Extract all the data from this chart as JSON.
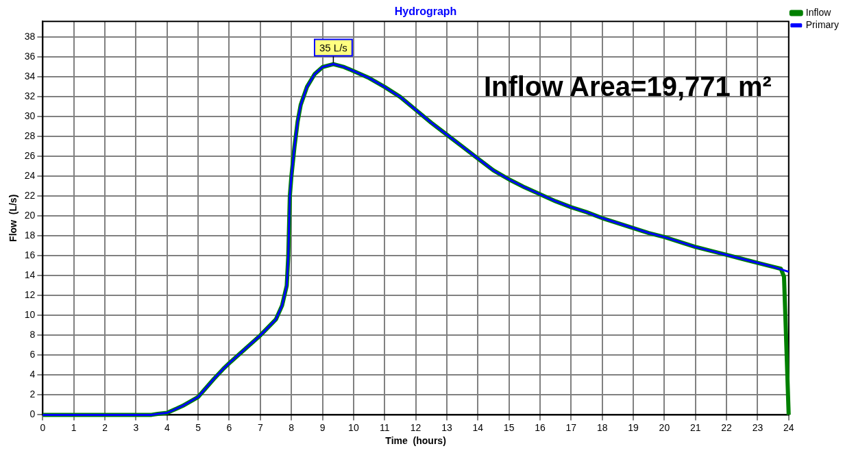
{
  "chart_data": {
    "type": "line",
    "title": "Hydrograph",
    "xlabel": "Time  (hours)",
    "ylabel": "Flow  (L/s)",
    "xlim": [
      0,
      24
    ],
    "xticks": [
      0,
      1,
      2,
      3,
      4,
      5,
      6,
      7,
      8,
      9,
      10,
      11,
      12,
      13,
      14,
      15,
      16,
      17,
      18,
      19,
      20,
      21,
      22,
      23,
      24
    ],
    "ylim": [
      0,
      39.6
    ],
    "yticks": [
      0,
      2,
      4,
      6,
      8,
      10,
      12,
      14,
      16,
      18,
      20,
      22,
      24,
      26,
      28,
      30,
      32,
      34,
      36,
      38
    ],
    "grid": true,
    "legend": "top right",
    "marker": "none",
    "line_style": "solid",
    "annotations": [
      {
        "text": "35 L/s",
        "x": 9.35,
        "y": 35.3
      },
      "Inflow Area=19,771 m²"
    ],
    "series": [
      {
        "name": "Inflow",
        "color": "#008000",
        "x": [
          0,
          3.5,
          3.7,
          4.0,
          4.5,
          5.0,
          5.5,
          5.8,
          6.0,
          6.5,
          7.0,
          7.5,
          7.7,
          7.85,
          7.9,
          7.95,
          8.0,
          8.1,
          8.2,
          8.3,
          8.5,
          8.75,
          9.0,
          9.35,
          9.7,
          10.0,
          10.5,
          11.0,
          11.5,
          12.0,
          12.5,
          13.0,
          13.5,
          14.0,
          14.5,
          15.0,
          15.5,
          16.0,
          16.5,
          17.0,
          17.5,
          18.0,
          18.5,
          19.0,
          19.5,
          20.0,
          20.5,
          21.0,
          21.5,
          22.0,
          22.5,
          23.0,
          23.5,
          23.75,
          23.85,
          24.0
        ],
        "values": [
          0,
          0,
          0.1,
          0.2,
          0.9,
          1.8,
          3.6,
          4.6,
          5.2,
          6.6,
          8.0,
          9.6,
          11.0,
          13.0,
          16.0,
          22.0,
          24.0,
          27.0,
          29.5,
          31.2,
          33.0,
          34.3,
          35.0,
          35.3,
          35.0,
          34.6,
          33.9,
          33.0,
          32.0,
          30.7,
          29.4,
          28.2,
          27.0,
          25.8,
          24.6,
          23.7,
          22.9,
          22.2,
          21.5,
          20.9,
          20.4,
          19.8,
          19.3,
          18.8,
          18.3,
          17.9,
          17.4,
          16.9,
          16.5,
          16.1,
          15.7,
          15.3,
          14.9,
          14.7,
          13.9,
          0
        ]
      },
      {
        "name": "Primary",
        "color": "#0000ff",
        "x": [
          0,
          3.5,
          3.7,
          4.0,
          4.5,
          5.0,
          5.5,
          5.8,
          6.0,
          6.5,
          7.0,
          7.5,
          7.7,
          7.85,
          7.9,
          7.95,
          8.0,
          8.1,
          8.2,
          8.3,
          8.5,
          8.75,
          9.0,
          9.35,
          9.7,
          10.0,
          10.5,
          11.0,
          11.5,
          12.0,
          12.5,
          13.0,
          13.5,
          14.0,
          14.5,
          15.0,
          15.5,
          16.0,
          16.5,
          17.0,
          17.5,
          18.0,
          18.5,
          19.0,
          19.5,
          20.0,
          20.5,
          21.0,
          21.5,
          22.0,
          22.5,
          23.0,
          23.5,
          24.0
        ],
        "values": [
          0,
          0,
          0.1,
          0.2,
          0.9,
          1.8,
          3.6,
          4.6,
          5.2,
          6.6,
          8.0,
          9.6,
          11.0,
          13.0,
          16.0,
          22.0,
          24.0,
          27.0,
          29.5,
          31.2,
          33.0,
          34.3,
          35.0,
          35.3,
          35.0,
          34.6,
          33.9,
          33.0,
          32.0,
          30.7,
          29.4,
          28.2,
          27.0,
          25.8,
          24.6,
          23.7,
          22.9,
          22.2,
          21.5,
          20.9,
          20.4,
          19.8,
          19.3,
          18.8,
          18.3,
          17.9,
          17.4,
          16.9,
          16.5,
          16.1,
          15.7,
          15.3,
          14.9,
          14.4
        ]
      }
    ]
  }
}
